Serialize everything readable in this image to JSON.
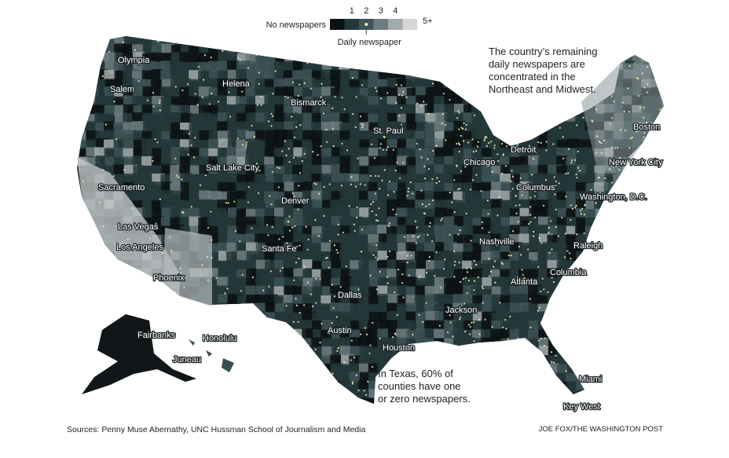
{
  "legend": {
    "items": [
      {
        "label": "No newspapers",
        "color": "#0c1113"
      },
      {
        "label": "1",
        "color": "#24373a"
      },
      {
        "label": "2",
        "color": "#3e5457"
      },
      {
        "label": "3",
        "color": "#6e7d80"
      },
      {
        "label": "4",
        "color": "#a2aaac"
      },
      {
        "label": "5+",
        "color": "#d4d6d7"
      }
    ],
    "dot_label": "Daily newspaper",
    "dot_color": "#f1eeb0"
  },
  "annotations": [
    "The country’s remaining daily newspapers are concentrated in the Northeast and Midwest.",
    "In Texas, 60% of counties have one or zero newspapers."
  ],
  "cities": [
    "Olympia",
    "Salem",
    "Helena",
    "Bismarck",
    "St. Paul",
    "Boston",
    "Detroit",
    "Chicago",
    "New York City",
    "Sacramento",
    "Salt Lake City",
    "Columbus",
    "Denver",
    "Washington, D.C.",
    "Las Vegas",
    "Los Angeles",
    "Santa Fe",
    "Nashville",
    "Raleigh",
    "Phoenix",
    "Columbia",
    "Atlanta",
    "Dallas",
    "Jackson",
    "Austin",
    "Fairbanks",
    "Honolulu",
    "Houston",
    "Juneau",
    "Miami",
    "Key West"
  ],
  "footer": {
    "source": "Sources: Penny Muse Abernathy, UNC Hussman School of Journalism and Media",
    "credit": "JOE FOX/THE WASHINGTON POST"
  }
}
